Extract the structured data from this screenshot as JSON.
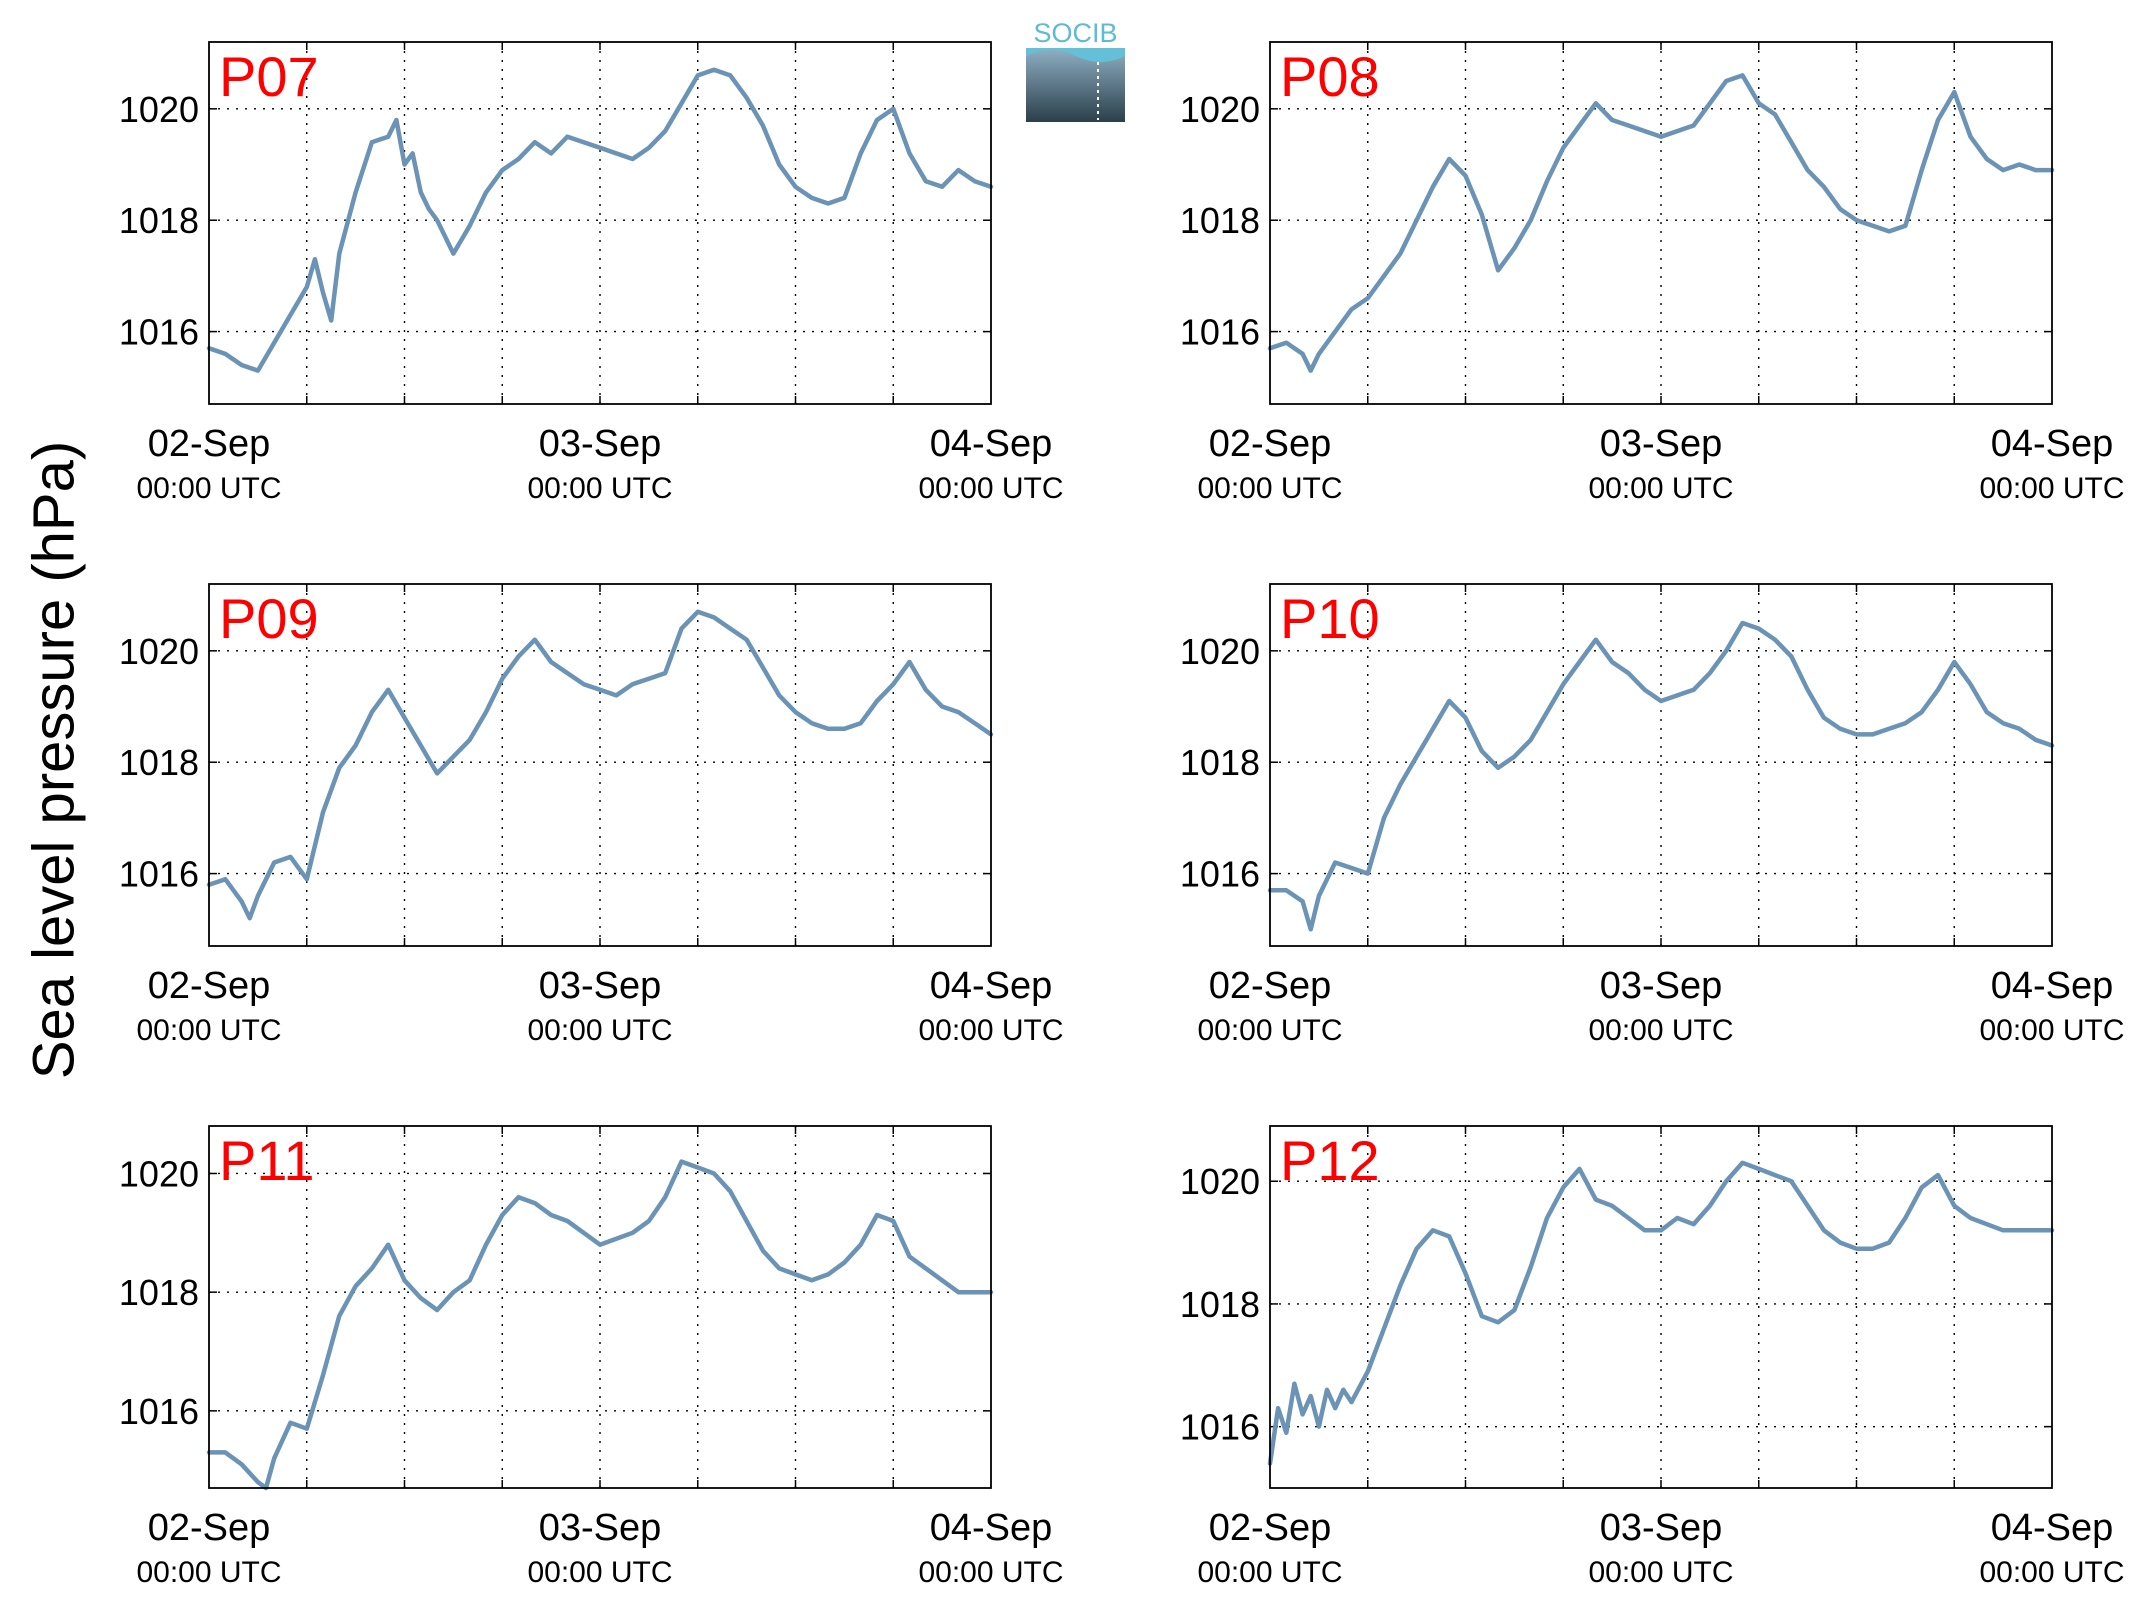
{
  "figure": {
    "ylabel": "Sea level pressure (hPa)",
    "logo_text": "SOCIB",
    "line_color": "#6a93b6",
    "panel_label_color": "#ff0000"
  },
  "chart_data": [
    {
      "type": "line",
      "title": "P07",
      "ylabel": "Sea level pressure (hPa)",
      "ylim": [
        1014.7,
        1021.2
      ],
      "yticks": [
        1016,
        1018,
        1020
      ],
      "xlim": [
        0,
        48
      ],
      "xticks": [
        {
          "date": "02-Sep",
          "time": "00:00 UTC"
        },
        {
          "date": "03-Sep",
          "time": "00:00 UTC"
        },
        {
          "date": "04-Sep",
          "time": "00:00 UTC"
        }
      ],
      "grid": true,
      "series": [
        {
          "x": [
            0,
            1,
            2,
            3,
            4,
            5,
            6,
            6.5,
            7,
            7.5,
            8,
            9,
            10,
            11,
            11.5,
            12,
            12.5,
            13,
            13.5,
            14,
            15,
            16,
            17,
            18,
            19,
            20,
            21,
            22,
            23,
            24,
            25,
            26,
            27,
            28,
            29,
            30,
            31,
            32,
            33,
            34,
            35,
            36,
            37,
            38,
            39,
            40,
            41,
            42,
            43,
            44,
            45,
            46,
            47,
            48
          ],
          "y": [
            1015.7,
            1015.6,
            1015.4,
            1015.3,
            1015.8,
            1016.3,
            1016.8,
            1017.3,
            1016.7,
            1016.2,
            1017.4,
            1018.5,
            1019.4,
            1019.5,
            1019.8,
            1019.0,
            1019.2,
            1018.5,
            1018.2,
            1018.0,
            1017.4,
            1017.9,
            1018.5,
            1018.9,
            1019.1,
            1019.4,
            1019.2,
            1019.5,
            1019.4,
            1019.3,
            1019.2,
            1019.1,
            1019.3,
            1019.6,
            1020.1,
            1020.6,
            1020.7,
            1020.6,
            1020.2,
            1019.7,
            1019.0,
            1018.6,
            1018.4,
            1018.3,
            1018.4,
            1019.2,
            1019.8,
            1020.0,
            1019.2,
            1018.7,
            1018.6,
            1018.9,
            1018.7,
            1018.6
          ]
        }
      ]
    },
    {
      "type": "line",
      "title": "P08",
      "ylabel": "Sea level pressure (hPa)",
      "ylim": [
        1014.7,
        1021.2
      ],
      "yticks": [
        1016,
        1018,
        1020
      ],
      "xlim": [
        0,
        48
      ],
      "xticks": [
        {
          "date": "02-Sep",
          "time": "00:00 UTC"
        },
        {
          "date": "03-Sep",
          "time": "00:00 UTC"
        },
        {
          "date": "04-Sep",
          "time": "00:00 UTC"
        }
      ],
      "grid": true,
      "series": [
        {
          "x": [
            0,
            1,
            2,
            2.5,
            3,
            4,
            5,
            6,
            7,
            8,
            9,
            10,
            11,
            12,
            13,
            14,
            15,
            16,
            17,
            18,
            19,
            20,
            21,
            22,
            23,
            24,
            25,
            26,
            27,
            28,
            29,
            30,
            31,
            32,
            33,
            34,
            35,
            36,
            37,
            38,
            39,
            40,
            41,
            42,
            43,
            44,
            45,
            46,
            47,
            48
          ],
          "y": [
            1015.7,
            1015.8,
            1015.6,
            1015.3,
            1015.6,
            1016.0,
            1016.4,
            1016.6,
            1017.0,
            1017.4,
            1018.0,
            1018.6,
            1019.1,
            1018.8,
            1018.1,
            1017.1,
            1017.5,
            1018.0,
            1018.7,
            1019.3,
            1019.7,
            1020.1,
            1019.8,
            1019.7,
            1019.6,
            1019.5,
            1019.6,
            1019.7,
            1020.1,
            1020.5,
            1020.6,
            1020.1,
            1019.9,
            1019.4,
            1018.9,
            1018.6,
            1018.2,
            1018.0,
            1017.9,
            1017.8,
            1017.9,
            1018.9,
            1019.8,
            1020.3,
            1019.5,
            1019.1,
            1018.9,
            1019.0,
            1018.9,
            1018.9
          ]
        }
      ]
    },
    {
      "type": "line",
      "title": "P09",
      "ylabel": "Sea level pressure (hPa)",
      "ylim": [
        1014.7,
        1021.2
      ],
      "yticks": [
        1016,
        1018,
        1020
      ],
      "xlim": [
        0,
        48
      ],
      "xticks": [
        {
          "date": "02-Sep",
          "time": "00:00 UTC"
        },
        {
          "date": "03-Sep",
          "time": "00:00 UTC"
        },
        {
          "date": "04-Sep",
          "time": "00:00 UTC"
        }
      ],
      "grid": true,
      "series": [
        {
          "x": [
            0,
            1,
            2,
            2.5,
            3,
            4,
            5,
            6,
            7,
            8,
            9,
            10,
            11,
            12,
            13,
            14,
            15,
            16,
            17,
            18,
            19,
            20,
            21,
            22,
            23,
            24,
            25,
            26,
            27,
            28,
            29,
            30,
            31,
            32,
            33,
            34,
            35,
            36,
            37,
            38,
            39,
            40,
            41,
            42,
            43,
            44,
            45,
            46,
            47,
            48
          ],
          "y": [
            1015.8,
            1015.9,
            1015.5,
            1015.2,
            1015.6,
            1016.2,
            1016.3,
            1015.9,
            1017.1,
            1017.9,
            1018.3,
            1018.9,
            1019.3,
            1018.8,
            1018.3,
            1017.8,
            1018.1,
            1018.4,
            1018.9,
            1019.5,
            1019.9,
            1020.2,
            1019.8,
            1019.6,
            1019.4,
            1019.3,
            1019.2,
            1019.4,
            1019.5,
            1019.6,
            1020.4,
            1020.7,
            1020.6,
            1020.4,
            1020.2,
            1019.7,
            1019.2,
            1018.9,
            1018.7,
            1018.6,
            1018.6,
            1018.7,
            1019.1,
            1019.4,
            1019.8,
            1019.3,
            1019.0,
            1018.9,
            1018.7,
            1018.5
          ]
        }
      ]
    },
    {
      "type": "line",
      "title": "P10",
      "ylabel": "Sea level pressure (hPa)",
      "ylim": [
        1014.7,
        1021.2
      ],
      "yticks": [
        1016,
        1018,
        1020
      ],
      "xlim": [
        0,
        48
      ],
      "xticks": [
        {
          "date": "02-Sep",
          "time": "00:00 UTC"
        },
        {
          "date": "03-Sep",
          "time": "00:00 UTC"
        },
        {
          "date": "04-Sep",
          "time": "00:00 UTC"
        }
      ],
      "grid": true,
      "series": [
        {
          "x": [
            0,
            1,
            2,
            2.5,
            3,
            4,
            5,
            6,
            7,
            8,
            9,
            10,
            11,
            12,
            13,
            14,
            15,
            16,
            17,
            18,
            19,
            20,
            21,
            22,
            23,
            24,
            25,
            26,
            27,
            28,
            29,
            30,
            31,
            32,
            33,
            34,
            35,
            36,
            37,
            38,
            39,
            40,
            41,
            42,
            43,
            44,
            45,
            46,
            47,
            48
          ],
          "y": [
            1015.7,
            1015.7,
            1015.5,
            1015.0,
            1015.6,
            1016.2,
            1016.1,
            1016.0,
            1017.0,
            1017.6,
            1018.1,
            1018.6,
            1019.1,
            1018.8,
            1018.2,
            1017.9,
            1018.1,
            1018.4,
            1018.9,
            1019.4,
            1019.8,
            1020.2,
            1019.8,
            1019.6,
            1019.3,
            1019.1,
            1019.2,
            1019.3,
            1019.6,
            1020.0,
            1020.5,
            1020.4,
            1020.2,
            1019.9,
            1019.3,
            1018.8,
            1018.6,
            1018.5,
            1018.5,
            1018.6,
            1018.7,
            1018.9,
            1019.3,
            1019.8,
            1019.4,
            1018.9,
            1018.7,
            1018.6,
            1018.4,
            1018.3
          ]
        }
      ]
    },
    {
      "type": "line",
      "title": "P11",
      "ylabel": "Sea level pressure (hPa)",
      "ylim": [
        1014.7,
        1020.8
      ],
      "yticks": [
        1016,
        1018,
        1020
      ],
      "xlim": [
        0,
        48
      ],
      "xticks": [
        {
          "date": "02-Sep",
          "time": "00:00 UTC"
        },
        {
          "date": "03-Sep",
          "time": "00:00 UTC"
        },
        {
          "date": "04-Sep",
          "time": "00:00 UTC"
        }
      ],
      "grid": true,
      "series": [
        {
          "x": [
            0,
            1,
            2,
            3,
            3.5,
            4,
            5,
            6,
            7,
            8,
            9,
            10,
            11,
            12,
            13,
            14,
            15,
            16,
            17,
            18,
            19,
            20,
            21,
            22,
            23,
            24,
            25,
            26,
            27,
            28,
            29,
            30,
            31,
            32,
            33,
            34,
            35,
            36,
            37,
            38,
            39,
            40,
            41,
            42,
            43,
            44,
            45,
            46,
            47,
            48
          ],
          "y": [
            1015.3,
            1015.3,
            1015.1,
            1014.8,
            1014.7,
            1015.2,
            1015.8,
            1015.7,
            1016.6,
            1017.6,
            1018.1,
            1018.4,
            1018.8,
            1018.2,
            1017.9,
            1017.7,
            1018.0,
            1018.2,
            1018.8,
            1019.3,
            1019.6,
            1019.5,
            1019.3,
            1019.2,
            1019.0,
            1018.8,
            1018.9,
            1019.0,
            1019.2,
            1019.6,
            1020.2,
            1020.1,
            1020.0,
            1019.7,
            1019.2,
            1018.7,
            1018.4,
            1018.3,
            1018.2,
            1018.3,
            1018.5,
            1018.8,
            1019.3,
            1019.2,
            1018.6,
            1018.4,
            1018.2,
            1018.0,
            1018.0,
            1018.0
          ]
        }
      ]
    },
    {
      "type": "line",
      "title": "P12",
      "ylabel": "Sea level pressure (hPa)",
      "ylim": [
        1015.0,
        1020.9
      ],
      "yticks": [
        1016,
        1018,
        1020
      ],
      "xlim": [
        0,
        48
      ],
      "xticks": [
        {
          "date": "02-Sep",
          "time": "00:00 UTC"
        },
        {
          "date": "03-Sep",
          "time": "00:00 UTC"
        },
        {
          "date": "04-Sep",
          "time": "00:00 UTC"
        }
      ],
      "grid": true,
      "series": [
        {
          "x": [
            0,
            0.5,
            1,
            1.5,
            2,
            2.5,
            3,
            3.5,
            4,
            4.5,
            5,
            6,
            7,
            8,
            9,
            10,
            11,
            12,
            13,
            14,
            15,
            16,
            17,
            18,
            19,
            20,
            21,
            22,
            23,
            24,
            25,
            26,
            27,
            28,
            29,
            30,
            31,
            32,
            33,
            34,
            35,
            36,
            37,
            38,
            39,
            40,
            41,
            42,
            43,
            44,
            45,
            46,
            47,
            48
          ],
          "y": [
            1015.4,
            1016.3,
            1015.9,
            1016.7,
            1016.2,
            1016.5,
            1016.0,
            1016.6,
            1016.3,
            1016.6,
            1016.4,
            1016.9,
            1017.6,
            1018.3,
            1018.9,
            1019.2,
            1019.1,
            1018.5,
            1017.8,
            1017.7,
            1017.9,
            1018.6,
            1019.4,
            1019.9,
            1020.2,
            1019.7,
            1019.6,
            1019.4,
            1019.2,
            1019.2,
            1019.4,
            1019.3,
            1019.6,
            1020.0,
            1020.3,
            1020.2,
            1020.1,
            1020.0,
            1019.6,
            1019.2,
            1019.0,
            1018.9,
            1018.9,
            1019.0,
            1019.4,
            1019.9,
            1020.1,
            1019.6,
            1019.4,
            1019.3,
            1019.2,
            1019.2,
            1019.2,
            1019.2
          ]
        }
      ]
    }
  ]
}
